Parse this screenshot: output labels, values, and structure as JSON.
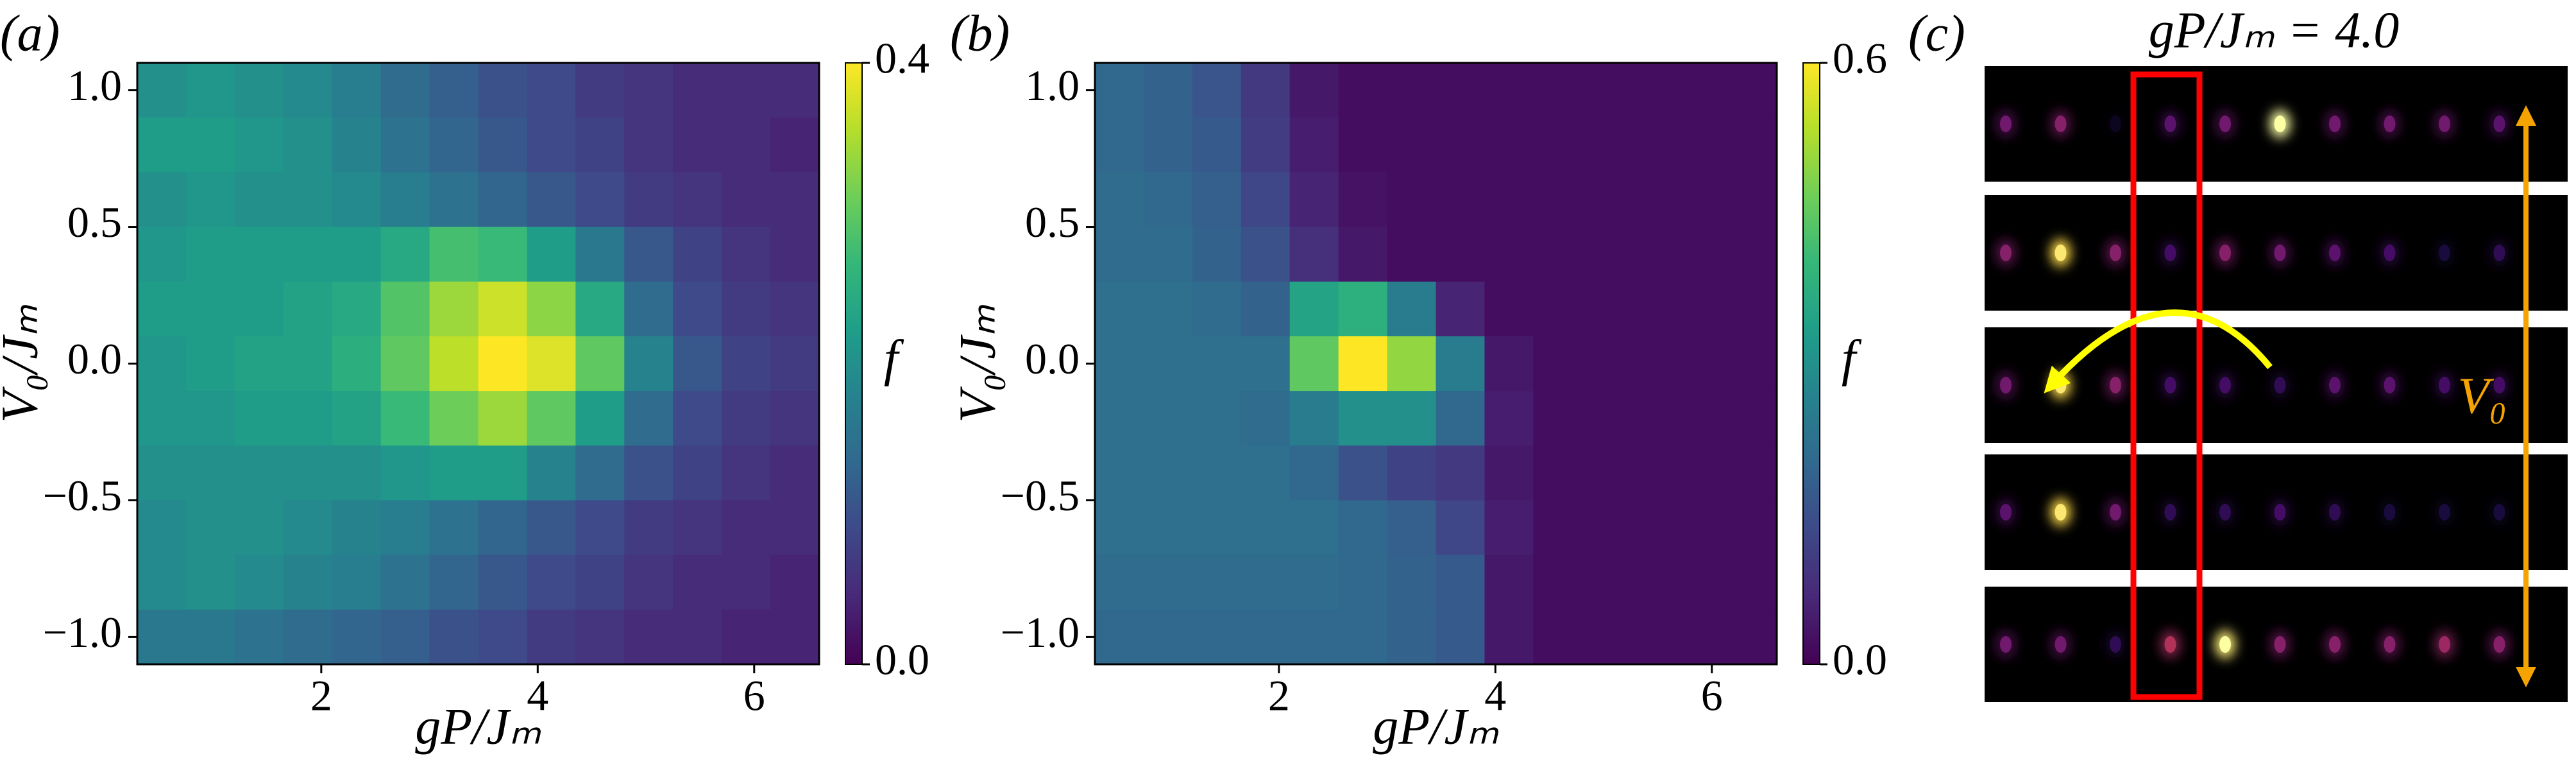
{
  "chart_data": [
    {
      "type": "heatmap",
      "panel_label": "(a)",
      "xlabel": "gP/Jₘ",
      "ylabel": "V₀/Jₘ",
      "colormap": "viridis",
      "x": [
        0.525,
        0.975,
        1.425,
        1.875,
        2.325,
        2.775,
        3.225,
        3.675,
        4.125,
        4.575,
        5.025,
        5.475,
        5.925,
        6.375
      ],
      "y": [
        1.0,
        0.8,
        0.6,
        0.4,
        0.2,
        0.0,
        -0.2,
        -0.4,
        -0.6,
        -0.8,
        -1.0
      ],
      "z": [
        [
          0.2,
          0.21,
          0.2,
          0.19,
          0.17,
          0.14,
          0.12,
          0.1,
          0.09,
          0.07,
          0.06,
          0.05,
          0.05,
          0.05
        ],
        [
          0.22,
          0.22,
          0.21,
          0.2,
          0.18,
          0.15,
          0.13,
          0.11,
          0.09,
          0.08,
          0.06,
          0.05,
          0.05,
          0.04
        ],
        [
          0.2,
          0.21,
          0.2,
          0.2,
          0.19,
          0.17,
          0.15,
          0.13,
          0.11,
          0.09,
          0.07,
          0.06,
          0.05,
          0.05
        ],
        [
          0.21,
          0.22,
          0.22,
          0.22,
          0.22,
          0.24,
          0.28,
          0.27,
          0.22,
          0.16,
          0.11,
          0.08,
          0.06,
          0.05
        ],
        [
          0.22,
          0.22,
          0.22,
          0.23,
          0.24,
          0.29,
          0.34,
          0.37,
          0.33,
          0.24,
          0.14,
          0.09,
          0.07,
          0.06
        ],
        [
          0.21,
          0.22,
          0.23,
          0.23,
          0.25,
          0.3,
          0.36,
          0.4,
          0.38,
          0.3,
          0.18,
          0.11,
          0.08,
          0.07
        ],
        [
          0.21,
          0.21,
          0.22,
          0.22,
          0.23,
          0.27,
          0.31,
          0.34,
          0.3,
          0.22,
          0.14,
          0.09,
          0.07,
          0.06
        ],
        [
          0.2,
          0.2,
          0.2,
          0.2,
          0.2,
          0.21,
          0.22,
          0.22,
          0.18,
          0.14,
          0.1,
          0.08,
          0.06,
          0.05
        ],
        [
          0.19,
          0.2,
          0.2,
          0.19,
          0.18,
          0.17,
          0.15,
          0.13,
          0.11,
          0.09,
          0.07,
          0.06,
          0.05,
          0.05
        ],
        [
          0.19,
          0.2,
          0.19,
          0.18,
          0.17,
          0.15,
          0.13,
          0.11,
          0.09,
          0.08,
          0.06,
          0.05,
          0.05,
          0.04
        ],
        [
          0.16,
          0.16,
          0.15,
          0.14,
          0.13,
          0.12,
          0.1,
          0.09,
          0.07,
          0.06,
          0.05,
          0.05,
          0.04,
          0.04
        ]
      ],
      "xlim": [
        0.3,
        6.6
      ],
      "ylim": [
        -1.1,
        1.1
      ],
      "xticks": [
        2,
        4,
        6
      ],
      "yticks": [
        {
          "value": -1.0,
          "label": "−1.0"
        },
        {
          "value": -0.5,
          "label": "−0.5"
        },
        {
          "value": 0.0,
          "label": "0.0"
        },
        {
          "value": 0.5,
          "label": "0.5"
        },
        {
          "value": 1.0,
          "label": "1.0"
        }
      ],
      "colorbar": {
        "label": "f",
        "lim": [
          0,
          0.4
        ],
        "ticks": [
          {
            "value": 0,
            "label": "0.0"
          },
          0.4
        ]
      }
    },
    {
      "type": "heatmap",
      "panel_label": "(b)",
      "xlabel": "gP/Jₘ",
      "ylabel": "V₀/Jₘ",
      "colormap": "viridis",
      "x": [
        0.525,
        0.975,
        1.425,
        1.875,
        2.325,
        2.775,
        3.225,
        3.675,
        4.125,
        4.575,
        5.025,
        5.475,
        5.925,
        6.375
      ],
      "y": [
        1.0,
        0.8,
        0.6,
        0.4,
        0.2,
        0.0,
        -0.2,
        -0.4,
        -0.6,
        -0.8,
        -1.0
      ],
      "z": [
        [
          0.2,
          0.19,
          0.16,
          0.1,
          0.04,
          0.02,
          0.02,
          0.02,
          0.02,
          0.02,
          0.02,
          0.02,
          0.02,
          0.02
        ],
        [
          0.2,
          0.19,
          0.17,
          0.11,
          0.05,
          0.02,
          0.02,
          0.02,
          0.02,
          0.02,
          0.02,
          0.02,
          0.02,
          0.02
        ],
        [
          0.21,
          0.2,
          0.18,
          0.13,
          0.06,
          0.03,
          0.02,
          0.02,
          0.02,
          0.02,
          0.02,
          0.02,
          0.02,
          0.02
        ],
        [
          0.21,
          0.21,
          0.19,
          0.15,
          0.08,
          0.04,
          0.02,
          0.02,
          0.02,
          0.02,
          0.02,
          0.02,
          0.02,
          0.02
        ],
        [
          0.22,
          0.22,
          0.21,
          0.19,
          0.35,
          0.38,
          0.25,
          0.06,
          0.02,
          0.02,
          0.02,
          0.02,
          0.02,
          0.02
        ],
        [
          0.22,
          0.22,
          0.22,
          0.22,
          0.45,
          0.6,
          0.5,
          0.25,
          0.04,
          0.02,
          0.02,
          0.02,
          0.02,
          0.02
        ],
        [
          0.22,
          0.22,
          0.22,
          0.21,
          0.25,
          0.3,
          0.3,
          0.2,
          0.05,
          0.02,
          0.02,
          0.02,
          0.02,
          0.02
        ],
        [
          0.22,
          0.22,
          0.22,
          0.22,
          0.2,
          0.15,
          0.12,
          0.1,
          0.04,
          0.02,
          0.02,
          0.02,
          0.02,
          0.02
        ],
        [
          0.22,
          0.22,
          0.22,
          0.22,
          0.22,
          0.2,
          0.18,
          0.13,
          0.05,
          0.02,
          0.02,
          0.02,
          0.02,
          0.02
        ],
        [
          0.21,
          0.21,
          0.21,
          0.21,
          0.21,
          0.2,
          0.19,
          0.17,
          0.04,
          0.02,
          0.02,
          0.02,
          0.02,
          0.02
        ],
        [
          0.2,
          0.2,
          0.2,
          0.2,
          0.2,
          0.2,
          0.19,
          0.17,
          0.04,
          0.02,
          0.02,
          0.02,
          0.02,
          0.02
        ]
      ],
      "xlim": [
        0.3,
        6.6
      ],
      "ylim": [
        -1.1,
        1.1
      ],
      "xticks": [
        2,
        4,
        6
      ],
      "yticks": [
        {
          "value": -1.0,
          "label": "−1.0"
        },
        {
          "value": -0.5,
          "label": "−0.5"
        },
        {
          "value": 0.0,
          "label": "0.0"
        },
        {
          "value": 0.5,
          "label": "0.5"
        },
        {
          "value": 1.0,
          "label": "1.0"
        }
      ],
      "colorbar": {
        "label": "f",
        "lim": [
          0,
          0.6
        ],
        "ticks": [
          {
            "value": 0,
            "label": "0.0"
          },
          0.6
        ]
      }
    },
    {
      "type": "image",
      "panel_label": "(c)",
      "title": "gP/Jₘ = 4.0",
      "annotation": "V₀",
      "colormap": "inferno",
      "rows": [
        [
          0.3,
          0.35,
          0.05,
          0.25,
          0.3,
          1.0,
          0.3,
          0.3,
          0.3,
          0.25
        ],
        [
          0.35,
          0.9,
          0.35,
          0.2,
          0.35,
          0.3,
          0.25,
          0.2,
          0.1,
          0.15
        ],
        [
          0.3,
          0.9,
          0.35,
          0.2,
          0.2,
          0.15,
          0.25,
          0.25,
          0.2,
          0.2
        ],
        [
          0.25,
          0.9,
          0.3,
          0.15,
          0.15,
          0.2,
          0.15,
          0.1,
          0.1,
          0.1
        ],
        [
          0.3,
          0.3,
          0.15,
          0.45,
          0.95,
          0.35,
          0.35,
          0.35,
          0.4,
          0.35
        ]
      ]
    }
  ]
}
